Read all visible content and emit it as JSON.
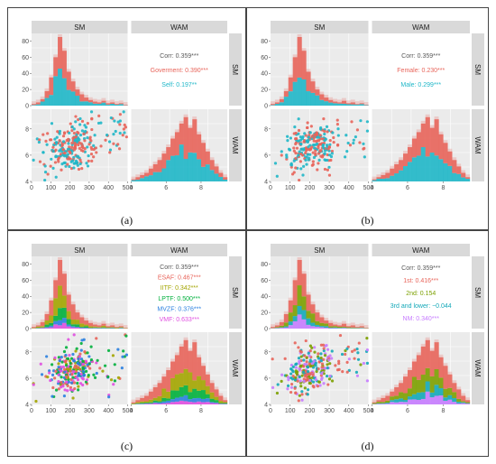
{
  "panels": [
    {
      "label": "(a)",
      "strip_top": [
        "SM",
        "WAM"
      ],
      "strip_right": [
        "SM",
        "WAM"
      ],
      "corr_lines": [
        {
          "text": "Corr: 0.359***",
          "color": "#595959"
        },
        {
          "text": "Goverment: 0.390***",
          "color": "#e8645a"
        },
        {
          "text": "Self: 0.197**",
          "color": "#1fb7c8"
        }
      ],
      "sm_ticks_y": [
        "0",
        "20",
        "40",
        "60",
        "80"
      ],
      "wam_ticks_y": [
        "4",
        "6",
        "8"
      ],
      "sm_ticks_x": [
        "0",
        "100",
        "200",
        "300",
        "400",
        "500"
      ],
      "wam_ticks_x": [
        "4",
        "6",
        "8"
      ]
    },
    {
      "label": "(b)",
      "strip_top": [
        "SM",
        "WAM"
      ],
      "strip_right": [
        "SM",
        "WAM"
      ],
      "corr_lines": [
        {
          "text": "Corr: 0.359***",
          "color": "#595959"
        },
        {
          "text": "Female: 0.230***",
          "color": "#e8645a"
        },
        {
          "text": "Male: 0.299***",
          "color": "#1fb7c8"
        }
      ],
      "sm_ticks_y": [
        "0",
        "20",
        "40",
        "60",
        "80"
      ],
      "wam_ticks_y": [
        "4",
        "6",
        "8"
      ],
      "sm_ticks_x": [
        "0",
        "100",
        "200",
        "300",
        "400",
        "500"
      ],
      "wam_ticks_x": [
        "4",
        "6",
        "8"
      ]
    },
    {
      "label": "(c)",
      "strip_top": [
        "SM",
        "WAM"
      ],
      "strip_right": [
        "SM",
        "WAM"
      ],
      "corr_lines": [
        {
          "text": "Corr: 0.359***",
          "color": "#595959"
        },
        {
          "text": "ESAF: 0.467***",
          "color": "#e8645a"
        },
        {
          "text": "IITF: 0.342***",
          "color": "#a3a500"
        },
        {
          "text": "LPTF: 0.500***",
          "color": "#00b03c"
        },
        {
          "text": "MVZF: 0.376***",
          "color": "#2a7fe0"
        },
        {
          "text": "VMF: 0.633***",
          "color": "#e04fe0"
        }
      ],
      "sm_ticks_y": [
        "0",
        "20",
        "40",
        "60",
        "80"
      ],
      "wam_ticks_y": [
        "4",
        "6",
        "8"
      ],
      "sm_ticks_x": [
        "0",
        "100",
        "200",
        "300",
        "400",
        "500"
      ],
      "wam_ticks_x": [
        "4",
        "6",
        "8"
      ]
    },
    {
      "label": "(d)",
      "strip_top": [
        "SM",
        "WAM"
      ],
      "strip_right": [
        "SM",
        "WAM"
      ],
      "corr_lines": [
        {
          "text": "Corr: 0.359***",
          "color": "#595959"
        },
        {
          "text": "1st: 0.416***",
          "color": "#e8645a"
        },
        {
          "text": "2nd: 0.154",
          "color": "#7ca000"
        },
        {
          "text": "3rd and lower: −0.044",
          "color": "#13a8b8"
        },
        {
          "text": "NM: 0.340***",
          "color": "#c77cff"
        }
      ],
      "sm_ticks_y": [
        "0",
        "20",
        "40",
        "60",
        "80"
      ],
      "wam_ticks_y": [
        "4",
        "6",
        "8"
      ],
      "sm_ticks_x": [
        "0",
        "100",
        "200",
        "300",
        "400",
        "500"
      ],
      "wam_ticks_x": [
        "4",
        "6",
        "8"
      ]
    }
  ],
  "chart_data": [
    {
      "type": "scatter-matrix",
      "variables": [
        "SM",
        "WAM"
      ],
      "group_by": "sector",
      "groups": [
        {
          "name": "Goverment",
          "color": "#e8645a"
        },
        {
          "name": "Self",
          "color": "#1fb7c8"
        }
      ],
      "correlations": {
        "Corr": "0.359***",
        "Goverment": "0.390***",
        "Self": "0.197**"
      },
      "sm_axis": [
        0,
        500
      ],
      "sm_count_axis": [
        0,
        85
      ],
      "wam_axis": [
        4,
        9.5
      ]
    },
    {
      "type": "scatter-matrix",
      "variables": [
        "SM",
        "WAM"
      ],
      "group_by": "gender",
      "groups": [
        {
          "name": "Female",
          "color": "#e8645a"
        },
        {
          "name": "Male",
          "color": "#1fb7c8"
        }
      ],
      "correlations": {
        "Corr": "0.359***",
        "Female": "0.230***",
        "Male": "0.299***"
      },
      "sm_axis": [
        0,
        500
      ],
      "sm_count_axis": [
        0,
        85
      ],
      "wam_axis": [
        4,
        9.5
      ]
    },
    {
      "type": "scatter-matrix",
      "variables": [
        "SM",
        "WAM"
      ],
      "group_by": "faculty",
      "groups": [
        {
          "name": "ESAF",
          "color": "#e8645a"
        },
        {
          "name": "IITF",
          "color": "#a3a500"
        },
        {
          "name": "LPTF",
          "color": "#00b03c"
        },
        {
          "name": "MVZF",
          "color": "#2a7fe0"
        },
        {
          "name": "VMF",
          "color": "#e04fe0"
        }
      ],
      "correlations": {
        "Corr": "0.359***",
        "ESAF": "0.467***",
        "IITF": "0.342***",
        "LPTF": "0.500***",
        "MVZF": "0.376***",
        "VMF": "0.633***"
      },
      "sm_axis": [
        0,
        500
      ],
      "sm_count_axis": [
        0,
        85
      ],
      "wam_axis": [
        4,
        9.5
      ]
    },
    {
      "type": "scatter-matrix",
      "variables": [
        "SM",
        "WAM"
      ],
      "group_by": "rank",
      "groups": [
        {
          "name": "1st",
          "color": "#e8645a"
        },
        {
          "name": "2nd",
          "color": "#7ca000"
        },
        {
          "name": "3rd and lower",
          "color": "#13a8b8"
        },
        {
          "name": "NM",
          "color": "#c77cff"
        }
      ],
      "correlations": {
        "Corr": "0.359***",
        "1st": "0.416***",
        "2nd": "0.154",
        "3rd and lower": "−0.044",
        "NM": "0.340***"
      },
      "sm_axis": [
        0,
        500
      ],
      "sm_count_axis": [
        0,
        85
      ],
      "wam_axis": [
        4,
        9.5
      ]
    }
  ]
}
